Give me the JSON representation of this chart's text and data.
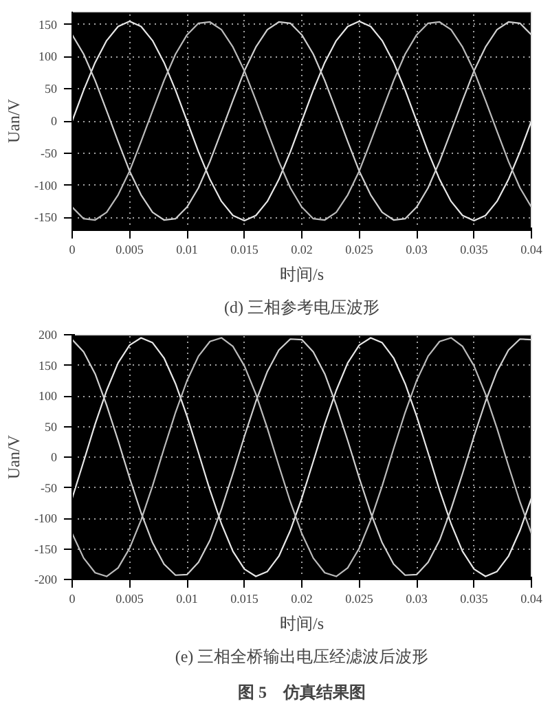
{
  "chart_data": [
    {
      "type": "line",
      "title": "(d) 三相参考电压波形",
      "xlabel": "时间/s",
      "ylabel": "Uan/V",
      "grid": true,
      "x": [
        0,
        0.001,
        0.002,
        0.003,
        0.004,
        0.005,
        0.006,
        0.007,
        0.008,
        0.009,
        0.01,
        0.011,
        0.012,
        0.013,
        0.014,
        0.015,
        0.016,
        0.017,
        0.018,
        0.019,
        0.02,
        0.021,
        0.022,
        0.023,
        0.024,
        0.025,
        0.026,
        0.027,
        0.028,
        0.029,
        0.03,
        0.031,
        0.032,
        0.033,
        0.034,
        0.035,
        0.036,
        0.037,
        0.038,
        0.039,
        0.04
      ],
      "xlim": [
        0,
        0.04
      ],
      "xticks": [
        0,
        0.005,
        0.01,
        0.015,
        0.02,
        0.025,
        0.03,
        0.035,
        0.04
      ],
      "ylim": [
        -170,
        170
      ],
      "yticks": [
        -150,
        -100,
        -50,
        0,
        50,
        100,
        150
      ],
      "series": [
        {
          "color": "#e8e8e8",
          "values": [
            0,
            48,
            91,
            125,
            147,
            155,
            147,
            125,
            91,
            48,
            0,
            -48,
            -91,
            -125,
            -147,
            -155,
            -147,
            -125,
            -91,
            -48,
            0,
            48,
            91,
            125,
            147,
            155,
            147,
            125,
            91,
            48,
            0,
            -48,
            -91,
            -125,
            -147,
            -155,
            -147,
            -125,
            -91,
            -48,
            0
          ]
        },
        {
          "color": "#d0d0d0",
          "values": [
            134,
            104,
            63,
            16,
            -32,
            -78,
            -115,
            -142,
            -154,
            -152,
            -134,
            -104,
            -63,
            -16,
            32,
            78,
            115,
            142,
            154,
            152,
            134,
            104,
            63,
            16,
            -32,
            -78,
            -115,
            -142,
            -154,
            -152,
            -134,
            -104,
            -63,
            -16,
            32,
            78,
            115,
            142,
            154,
            152,
            134
          ]
        },
        {
          "color": "#bcbcbc",
          "values": [
            -134,
            -152,
            -154,
            -142,
            -115,
            -78,
            -32,
            16,
            63,
            104,
            134,
            152,
            154,
            142,
            115,
            78,
            32,
            -16,
            -63,
            -104,
            -134,
            -152,
            -154,
            -142,
            -115,
            -78,
            -32,
            16,
            63,
            104,
            134,
            152,
            154,
            142,
            115,
            78,
            32,
            -16,
            -63,
            -104,
            -134
          ]
        }
      ]
    },
    {
      "type": "line",
      "title": "(e) 三相全桥输出电压经滤波后波形",
      "xlabel": "时间/s",
      "ylabel": "Uan/V",
      "grid": true,
      "annotations": [
        "图 5　仿真结果图"
      ],
      "x": [
        0,
        0.001,
        0.002,
        0.003,
        0.004,
        0.005,
        0.006,
        0.007,
        0.008,
        0.009,
        0.01,
        0.011,
        0.012,
        0.013,
        0.014,
        0.015,
        0.016,
        0.017,
        0.018,
        0.019,
        0.02,
        0.021,
        0.022,
        0.023,
        0.024,
        0.025,
        0.026,
        0.027,
        0.028,
        0.029,
        0.03,
        0.031,
        0.032,
        0.033,
        0.034,
        0.035,
        0.036,
        0.037,
        0.038,
        0.039,
        0.04
      ],
      "xlim": [
        0,
        0.04
      ],
      "xticks": [
        0,
        0.005,
        0.01,
        0.015,
        0.02,
        0.025,
        0.03,
        0.035,
        0.04
      ],
      "ylim": [
        -200,
        200
      ],
      "yticks": [
        -200,
        -150,
        -100,
        -50,
        0,
        50,
        100,
        150,
        200
      ],
      "series": [
        {
          "color": "#e8e8e8",
          "values": [
            -67,
            -7,
            54,
            109,
            154,
            183,
            195,
            187,
            162,
            120,
            67,
            7,
            -54,
            -109,
            -154,
            -183,
            -195,
            -187,
            -162,
            -120,
            -67,
            -7,
            54,
            109,
            154,
            183,
            195,
            187,
            162,
            120,
            67,
            7,
            -54,
            -109,
            -154,
            -183,
            -195,
            -187,
            -162,
            -120,
            -67
          ]
        },
        {
          "color": "#d0d0d0",
          "values": [
            192,
            172,
            136,
            85,
            27,
            -34,
            -91,
            -140,
            -175,
            -193,
            -192,
            -172,
            -136,
            -85,
            -27,
            34,
            91,
            140,
            175,
            193,
            192,
            172,
            136,
            85,
            27,
            -34,
            -91,
            -140,
            -175,
            -193,
            -192,
            -172,
            -136,
            -85,
            -27,
            34,
            91,
            140,
            175,
            193,
            192
          ]
        },
        {
          "color": "#bcbcbc",
          "values": [
            -125,
            -165,
            -189,
            -195,
            -181,
            -149,
            -103,
            -47,
            14,
            73,
            125,
            165,
            189,
            195,
            181,
            149,
            103,
            47,
            -14,
            -73,
            -125,
            -165,
            -189,
            -195,
            -181,
            -149,
            -103,
            -47,
            14,
            73,
            125,
            165,
            189,
            195,
            181,
            149,
            103,
            47,
            -14,
            -73,
            -125
          ]
        }
      ]
    }
  ]
}
